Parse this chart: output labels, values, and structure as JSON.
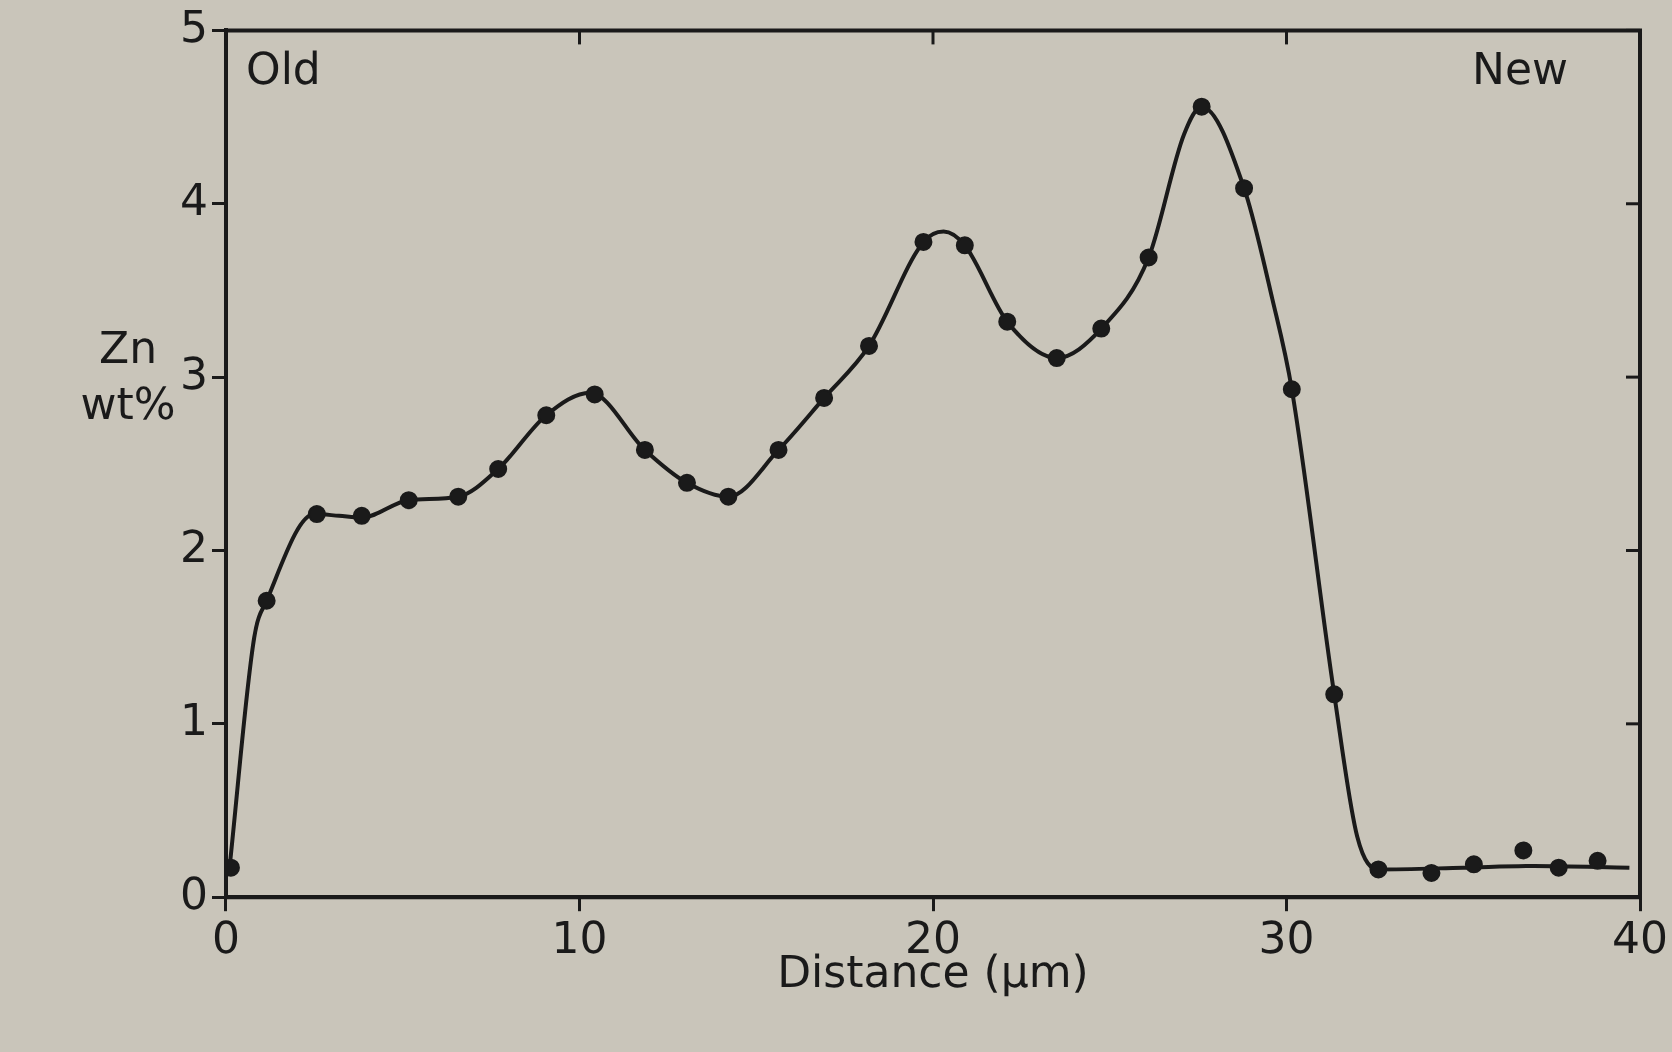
{
  "chart_data": {
    "type": "scatter",
    "xlabel": "Distance (μm)",
    "ylabel": "Zn wt%",
    "annotations": [
      "Old",
      "New"
    ],
    "xlim": [
      0,
      40
    ],
    "xticks": [
      0,
      10,
      20,
      30,
      40
    ],
    "ylim": [
      0,
      5
    ],
    "yticks": [
      0,
      1,
      2,
      3,
      4,
      5
    ],
    "grid": false,
    "legend": false,
    "marker": "circle",
    "series": [
      {
        "color": "#1a1a1a",
        "x": [
          0.14,
          1.15,
          2.57,
          3.84,
          5.17,
          6.57,
          7.7,
          9.06,
          10.43,
          11.85,
          13.04,
          14.21,
          15.63,
          16.92,
          18.19,
          19.73,
          20.9,
          22.1,
          23.5,
          24.76,
          26.1,
          27.6,
          28.8,
          30.15,
          31.35,
          32.6,
          34.1,
          35.3,
          36.7,
          37.7,
          38.8
        ],
        "values": [
          0.17,
          1.71,
          2.21,
          2.2,
          2.29,
          2.31,
          2.47,
          2.78,
          2.9,
          2.58,
          2.39,
          2.31,
          2.58,
          2.88,
          3.18,
          3.78,
          3.76,
          3.32,
          3.11,
          3.28,
          3.69,
          4.56,
          4.09,
          2.93,
          1.17,
          0.16,
          0.14,
          0.19,
          0.27,
          0.17,
          0.21
        ]
      },
      {
        "type": "line",
        "color": "#1a1a1a",
        "marker": "none",
        "line_style": "solid",
        "x": [
          0.1,
          0.8,
          1.15,
          2.5,
          3.2,
          3.84,
          5.17,
          6.57,
          7.7,
          9.06,
          10.3,
          11.85,
          13.04,
          14.21,
          15.63,
          16.92,
          18.19,
          19.73,
          20.3,
          20.9,
          22.1,
          23.5,
          24.76,
          26.1,
          27.1,
          27.6,
          28.8,
          29.6,
          30.15,
          31.35,
          32.0,
          32.6,
          35.0,
          37.0,
          39.7
        ],
        "values": [
          0.17,
          1.5,
          1.71,
          2.21,
          2.2,
          2.19,
          2.29,
          2.31,
          2.47,
          2.78,
          2.91,
          2.58,
          2.39,
          2.31,
          2.58,
          2.88,
          3.18,
          3.78,
          3.84,
          3.76,
          3.32,
          3.11,
          3.28,
          3.69,
          4.4,
          4.56,
          4.09,
          3.45,
          2.93,
          1.17,
          0.35,
          0.16,
          0.17,
          0.18,
          0.17
        ]
      }
    ]
  }
}
